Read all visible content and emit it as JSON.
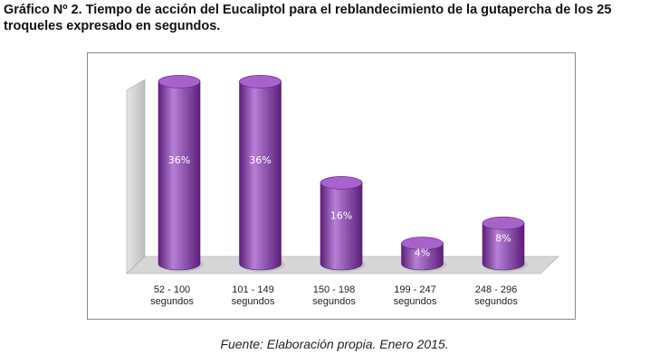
{
  "title": "Gráfico Nº 2. Tiempo de acción del Eucaliptol para el reblandecimiento de la  gutapercha de los 25 troqueles expresado en segundos.",
  "source": "Fuente: Elaboración propia. Enero 2015.",
  "chart_data": {
    "type": "bar",
    "style": "3d-cylinder",
    "categories": [
      [
        "52 - 100",
        "segundos"
      ],
      [
        "101 - 149",
        "segundos"
      ],
      [
        "150 - 198",
        "segundos"
      ],
      [
        "199 - 247",
        "segundos"
      ],
      [
        "248 - 296",
        "segundos"
      ]
    ],
    "values": [
      36,
      36,
      16,
      4,
      8
    ],
    "data_labels": [
      "36%",
      "36%",
      "16%",
      "4%",
      "8%"
    ],
    "title": "",
    "xlabel": "",
    "ylabel": "",
    "ylim": [
      0,
      40
    ],
    "grid": false,
    "legend": "none",
    "colors": {
      "bar": "#8e3fb3",
      "bar_dark": "#5b1f7a",
      "bar_light": "#b77fd6",
      "bar_top": "#a862cc",
      "wall": "#c9c9c9",
      "floor": "#d6d6d6",
      "data_label": "#ffffff"
    }
  }
}
